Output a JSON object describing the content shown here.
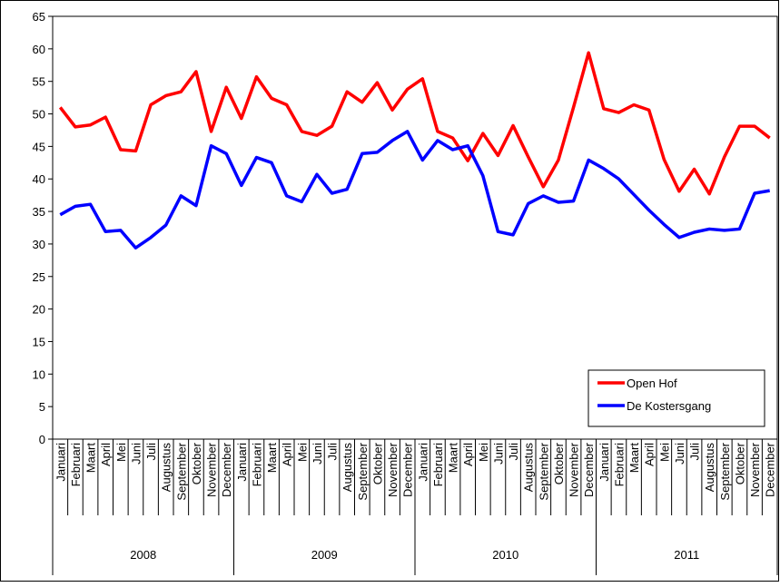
{
  "chart_data": {
    "type": "line",
    "categories": [
      "Januari",
      "Februari",
      "Maart",
      "April",
      "Mei",
      "Juni",
      "Juli",
      "Augustus",
      "September",
      "Oktober",
      "November",
      "December",
      "Januari",
      "Februari",
      "Maart",
      "April",
      "Mei",
      "Juni",
      "Juli",
      "Augustus",
      "September",
      "Oktober",
      "November",
      "December",
      "Januari",
      "Februari",
      "Maart",
      "April",
      "Mei",
      "Juni",
      "Juli",
      "Augustus",
      "September",
      "Oktober",
      "November",
      "December",
      "Januari",
      "Februari",
      "Maart",
      "April",
      "Mei",
      "Juni",
      "Juli",
      "Augustus",
      "September",
      "Oktober",
      "November",
      "December"
    ],
    "groups": [
      "2008",
      "2009",
      "2010",
      "2011"
    ],
    "series": [
      {
        "name": "Open Hof",
        "color": "#ff0000",
        "values": [
          51,
          48,
          48.3,
          49.5,
          44.5,
          44.3,
          51.4,
          52.8,
          53.4,
          56.5,
          47.3,
          54.1,
          49.3,
          55.7,
          52.4,
          51.4,
          47.3,
          46.7,
          48.1,
          53.4,
          51.8,
          54.8,
          50.6,
          53.8,
          55.4,
          47.3,
          46.3,
          42.8,
          47,
          43.6,
          48.2,
          43.4,
          38.8,
          42.9,
          51,
          59.4,
          50.8,
          50.2,
          51.4,
          50.6,
          43,
          38.1,
          41.5,
          37.7,
          43.4,
          48.1,
          48.1,
          46.3
        ]
      },
      {
        "name": "De Kostersgang",
        "color": "#0000ff",
        "values": [
          34.5,
          35.8,
          36.1,
          31.9,
          32.1,
          29.4,
          31,
          32.9,
          37.4,
          35.9,
          45.1,
          43.9,
          39,
          43.3,
          42.5,
          37.4,
          36.5,
          40.7,
          37.8,
          38.4,
          43.9,
          44.1,
          45.9,
          47.3,
          42.9,
          45.9,
          44.5,
          45.1,
          40.5,
          31.9,
          31.4,
          36.2,
          37.4,
          36.4,
          36.6,
          42.9,
          41.6,
          40,
          37.6,
          35.2,
          33,
          31,
          31.8,
          32.3,
          32.1,
          32.3,
          37.8,
          38.2
        ]
      }
    ],
    "ylim": [
      0,
      65
    ],
    "yticks": [
      0,
      5,
      10,
      15,
      20,
      25,
      30,
      35,
      40,
      45,
      50,
      55,
      60,
      65
    ],
    "legend": "lower right",
    "grid": false
  }
}
